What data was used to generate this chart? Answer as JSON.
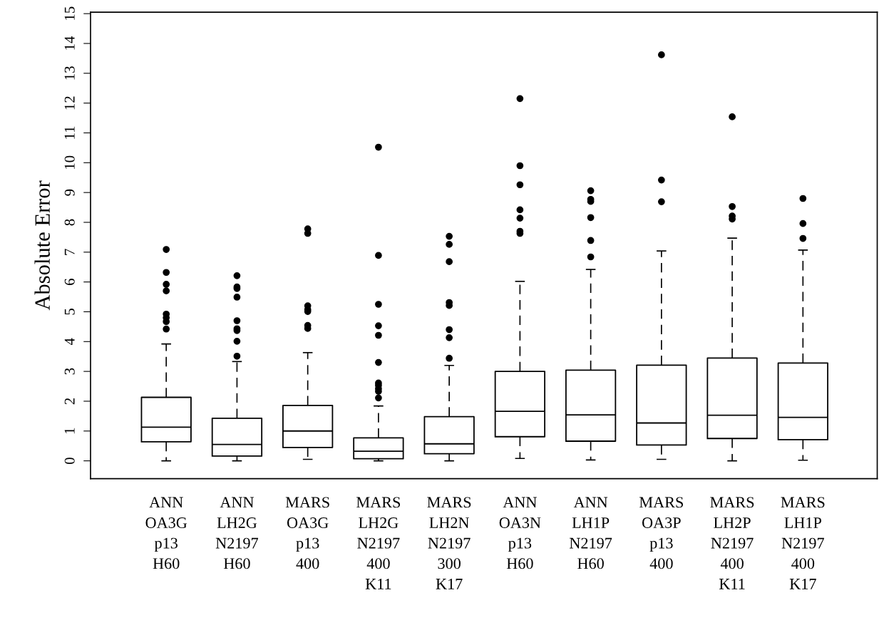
{
  "chart_data": {
    "type": "box",
    "ylabel": "Absolute Error",
    "categories": [
      "ANN\nOA3G\np13\nH60",
      "ANN\nLH2G\nN2197\nH60",
      "MARS\nOA3G\np13\n400",
      "MARS\nLH2G\nN2197\n400\nK11",
      "MARS\nLH2N\nN2197\n300\nK17",
      "ANN\nOA3N\np13\nH60",
      "ANN\nLH1P\nN2197\nH60",
      "MARS\nOA3P\np13\n400",
      "MARS\nLH2P\nN2197\n400\nK11",
      "MARS\nLH1P\nN2197\n400\nK17"
    ],
    "boxes": [
      {
        "low": 0,
        "q1": 0.64,
        "median": 1.13,
        "q3": 2.13,
        "high": 3.92,
        "outliers": [
          7.09,
          6.32,
          5.92,
          5.7,
          4.92,
          4.8,
          4.67,
          4.42
        ]
      },
      {
        "low": 0,
        "q1": 0.16,
        "median": 0.55,
        "q3": 1.43,
        "high": 3.33,
        "outliers": [
          6.21,
          5.83,
          5.78,
          5.49,
          4.7,
          4.43,
          4.37,
          4.01,
          3.51
        ]
      },
      {
        "low": 0.05,
        "q1": 0.45,
        "median": 1.0,
        "q3": 1.86,
        "high": 3.63,
        "outliers": [
          7.78,
          7.63,
          5.2,
          5.07,
          5.01,
          4.54,
          4.44
        ]
      },
      {
        "low": 0,
        "q1": 0.07,
        "median": 0.32,
        "q3": 0.77,
        "high": 1.84,
        "outliers": [
          10.52,
          6.89,
          5.25,
          4.53,
          4.21,
          3.3,
          2.61,
          2.53,
          2.42,
          2.33,
          2.11
        ]
      },
      {
        "low": 0,
        "q1": 0.24,
        "median": 0.57,
        "q3": 1.48,
        "high": 3.2,
        "outliers": [
          7.53,
          7.26,
          6.68,
          5.31,
          5.21,
          4.4,
          4.13,
          3.44
        ]
      },
      {
        "low": 0.08,
        "q1": 0.81,
        "median": 1.66,
        "q3": 3.0,
        "high": 6.02,
        "outliers": [
          12.15,
          9.9,
          9.26,
          8.42,
          8.14,
          7.7,
          7.63
        ]
      },
      {
        "low": 0.03,
        "q1": 0.66,
        "median": 1.54,
        "q3": 3.04,
        "high": 6.42,
        "outliers": [
          9.06,
          8.77,
          8.7,
          8.16,
          7.39,
          6.84
        ]
      },
      {
        "low": 0.05,
        "q1": 0.53,
        "median": 1.27,
        "q3": 3.21,
        "high": 7.04,
        "outliers": [
          13.62,
          9.42,
          8.69
        ]
      },
      {
        "low": 0,
        "q1": 0.75,
        "median": 1.53,
        "q3": 3.45,
        "high": 7.47,
        "outliers": [
          11.54,
          8.53,
          8.21,
          8.11
        ]
      },
      {
        "low": 0.02,
        "q1": 0.71,
        "median": 1.46,
        "q3": 3.28,
        "high": 7.07,
        "outliers": [
          8.8,
          7.96,
          7.46
        ]
      }
    ],
    "ylim": [
      -0.6,
      15.05
    ],
    "yticks": [
      0,
      1,
      2,
      3,
      4,
      5,
      6,
      7,
      8,
      9,
      10,
      11,
      12,
      13,
      14,
      15
    ]
  }
}
